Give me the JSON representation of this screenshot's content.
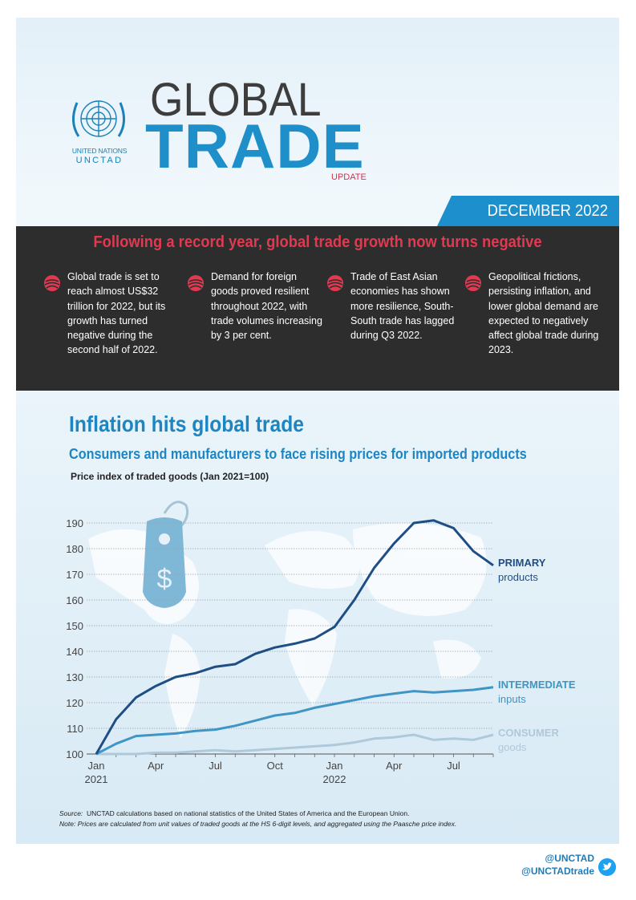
{
  "header": {
    "org_name": "UNITED NATIONS",
    "org_short": "UNCTAD",
    "title_line1": "GLOBAL",
    "title_line2": "TRADE",
    "title_update": "UPDATE",
    "date": "DECEMBER 2022"
  },
  "highlights": {
    "title": "Following a record year, global trade growth now turns negative",
    "bullets": [
      "Global trade is set to reach almost US$32 trillion for 2022, but its growth has turned negative during the second half of 2022.",
      "Demand for foreign goods proved resilient throughout 2022, with trade volumes increasing by 3 per cent.",
      "Trade of East Asian economies has shown more resilience, South-South trade has lagged during Q3 2022.",
      "Geopolitical frictions, persisting inflation, and lower global demand are expected to negatively affect global trade during 2023."
    ]
  },
  "section": {
    "title": "Inflation hits global trade",
    "subtitle": "Consumers and manufacturers to face rising prices for imported products"
  },
  "chart_data": {
    "type": "line",
    "title": "Price index of traded goods (Jan 2021=100)",
    "ylim": [
      100,
      190
    ],
    "yticks": [
      100,
      110,
      120,
      130,
      140,
      150,
      160,
      170,
      180,
      190
    ],
    "x": [
      "Jan 2021",
      "Feb 2021",
      "Mar 2021",
      "Apr 2021",
      "May 2021",
      "Jun 2021",
      "Jul 2021",
      "Aug 2021",
      "Sep 2021",
      "Oct 2021",
      "Nov 2021",
      "Dec 2021",
      "Jan 2022",
      "Feb 2022",
      "Mar 2022",
      "Apr 2022",
      "May 2022",
      "Jun 2022",
      "Jul 2022",
      "Aug 2022",
      "Sep 2022"
    ],
    "xtick_labels": [
      {
        "index": 0,
        "line1": "Jan",
        "line2": "2021"
      },
      {
        "index": 3,
        "line1": "Apr",
        "line2": ""
      },
      {
        "index": 6,
        "line1": "Jul",
        "line2": ""
      },
      {
        "index": 9,
        "line1": "Oct",
        "line2": ""
      },
      {
        "index": 12,
        "line1": "Jan",
        "line2": "2022"
      },
      {
        "index": 15,
        "line1": "Apr",
        "line2": ""
      },
      {
        "index": 18,
        "line1": "Jul",
        "line2": ""
      }
    ],
    "grid": true,
    "series": [
      {
        "name": "PRIMARY",
        "sub": "products",
        "color": "#1f4e85",
        "values": [
          100,
          113.5,
          122,
          126.5,
          130,
          131.5,
          134,
          135,
          139,
          141.5,
          143,
          145,
          149.5,
          160,
          172.5,
          182,
          190,
          191,
          188,
          179,
          173.5
        ]
      },
      {
        "name": "INTERMEDIATE",
        "sub": "inputs",
        "color": "#3f95c4",
        "values": [
          100,
          104,
          107,
          107.5,
          108,
          109,
          109.5,
          111,
          113,
          115,
          116,
          118,
          119.5,
          121,
          122.5,
          123.5,
          124.5,
          124,
          124.5,
          125,
          126
        ]
      },
      {
        "name": "CONSUMER",
        "sub": "goods",
        "color": "#aec9da",
        "values": [
          100,
          100,
          100,
          100.5,
          100.5,
          101,
          101.5,
          101,
          101.5,
          102,
          102.5,
          103,
          103.5,
          104.5,
          106,
          106.5,
          107.5,
          105.5,
          106,
          105.5,
          107.5
        ]
      }
    ]
  },
  "footer": {
    "source_label": "Source:",
    "source_text": "UNCTAD calculations based on national statistics of the United States of America and the European Union.",
    "note_label": "Note:",
    "note_text": "Prices are calculated from unit values of traded goods at the HS 6-digit levels, and aggregated using the Paasche price index.",
    "handle1": "@UNCTAD",
    "handle2": "@UNCTADtrade"
  },
  "price_tag_symbol": "$"
}
